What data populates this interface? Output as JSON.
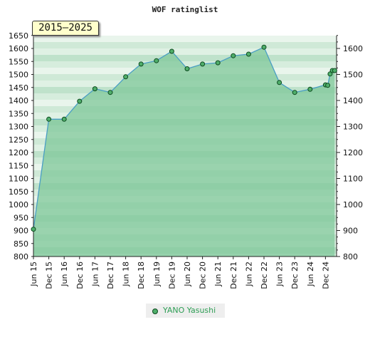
{
  "chart_data": {
    "type": "area",
    "title": "WOF ratinglist",
    "period_label": "2015–2025",
    "x_tick_labels": [
      "Jun 15",
      "Dec 15",
      "Jun 16",
      "Dec 16",
      "Jun 17",
      "Dec 17",
      "Jun 18",
      "Dec 18",
      "Jun 19",
      "Dec 19",
      "Jun 20",
      "Dec 20",
      "Jun 21",
      "Dec 21",
      "Jun 22",
      "Dec 22",
      "Jun 23",
      "Dec 23",
      "Jun 24",
      "Dec 24"
    ],
    "y_left_ticks": [
      800,
      850,
      900,
      950,
      1000,
      1050,
      1100,
      1150,
      1200,
      1250,
      1300,
      1350,
      1400,
      1450,
      1500,
      1550,
      1600,
      1650
    ],
    "y_right_ticks": [
      800,
      900,
      1000,
      1100,
      1200,
      1300,
      1400,
      1500,
      1600
    ],
    "ylim": [
      800,
      1650
    ],
    "xlim": [
      0,
      19.6
    ],
    "series": [
      {
        "name": "YANO Yasushi",
        "x": [
          0,
          1,
          2,
          3,
          4,
          5,
          6,
          7,
          8,
          9,
          10,
          11,
          12,
          13,
          14,
          15,
          16,
          17,
          18,
          19,
          19.15,
          19.3,
          19.45,
          19.6
        ],
        "y": [
          905,
          1328,
          1328,
          1397,
          1445,
          1431,
          1491,
          1540,
          1553,
          1589,
          1522,
          1540,
          1545,
          1572,
          1578,
          1605,
          1469,
          1431,
          1443,
          1460,
          1458,
          1502,
          1515,
          1515
        ]
      }
    ],
    "colors": {
      "fill": "#7fc79a",
      "line": "#4a9ec4",
      "marker": "#4fae6a",
      "marker_edge": "#0d4a1f"
    },
    "legend": {
      "label": "YANO Yasushi",
      "placement": "bottom-center"
    }
  }
}
